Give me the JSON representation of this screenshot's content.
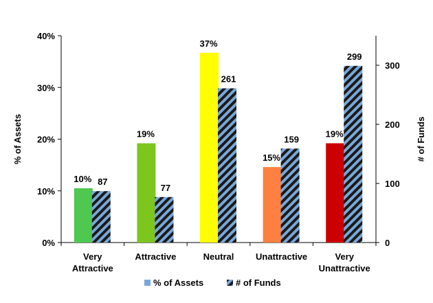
{
  "chart_data": {
    "type": "bar",
    "categories": [
      [
        "Very",
        "Attractive"
      ],
      [
        "Attractive"
      ],
      [
        "Neutral"
      ],
      [
        "Unattractive"
      ],
      [
        "Very",
        "Unattractive"
      ]
    ],
    "series": [
      {
        "name": "% of Assets",
        "axis": "left",
        "values": [
          10.5,
          19.2,
          36.7,
          14.6,
          19.2
        ],
        "labels": [
          "10%",
          "19%",
          "37%",
          "15%",
          "19%"
        ],
        "colors": [
          "#4ec84e",
          "#7cc61e",
          "#ffff00",
          "#ff8040",
          "#cc0000"
        ]
      },
      {
        "name": "# of Funds",
        "axis": "right",
        "values": [
          87,
          77,
          261,
          159,
          299
        ],
        "labels": [
          "87",
          "77",
          "261",
          "159",
          "299"
        ],
        "fill": "hatched",
        "colors": [
          "#7aa7d8",
          "#1a1a1a"
        ]
      }
    ],
    "ylabel": "% of Assets",
    "y2label": "# of Funds",
    "ylim": [
      0,
      40
    ],
    "y2lim": [
      0,
      350
    ],
    "yticks": [
      "0%",
      "10%",
      "20%",
      "30%",
      "40%"
    ],
    "y2ticks": [
      "0",
      "100",
      "200",
      "300"
    ],
    "legend": "bottom",
    "grid": false
  }
}
